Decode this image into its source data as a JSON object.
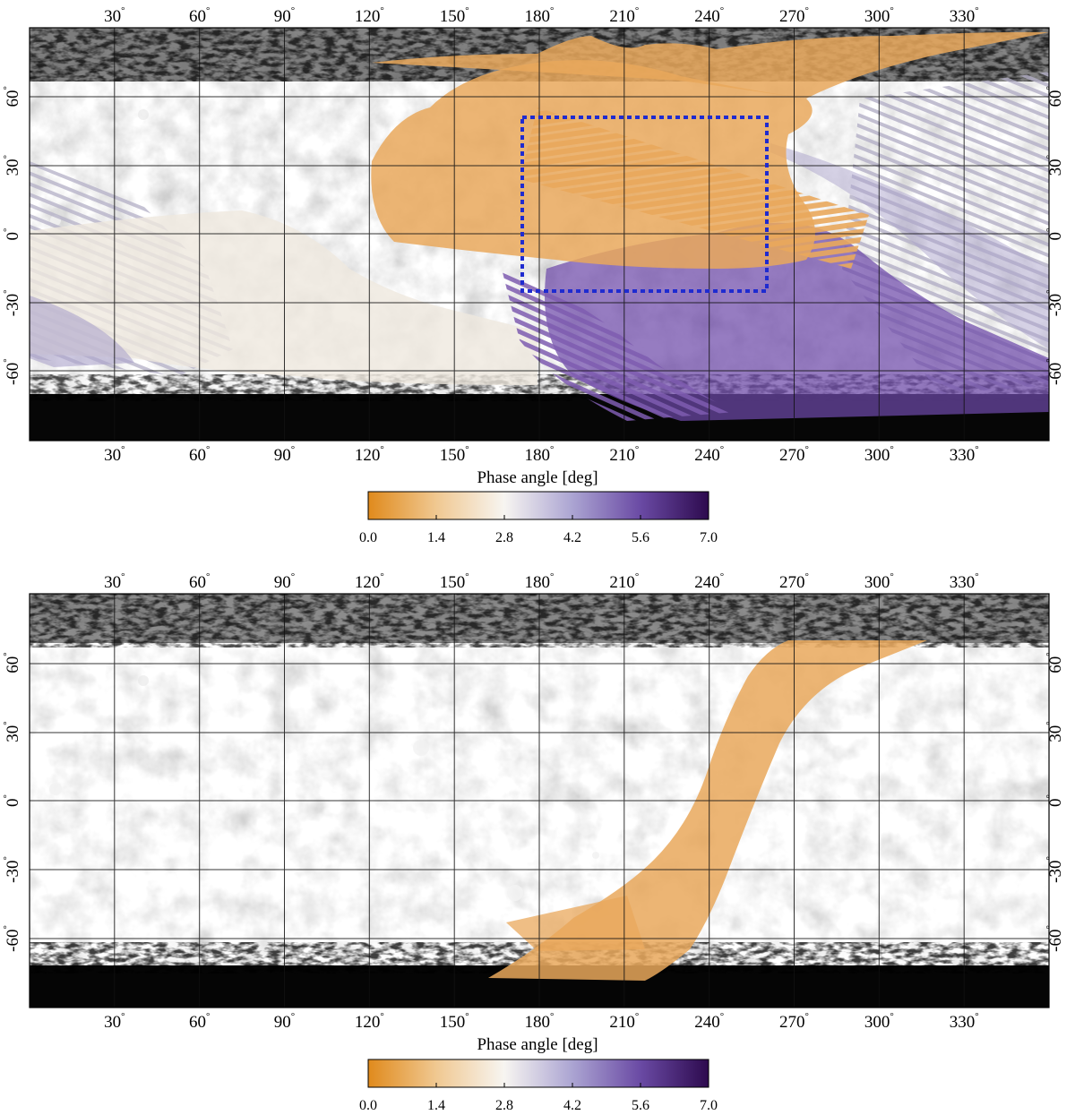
{
  "panels": [
    {
      "id": "top",
      "lon_ticks": [
        30,
        60,
        90,
        120,
        150,
        180,
        210,
        240,
        270,
        300,
        330
      ],
      "lat_ticks": [
        60,
        30,
        0,
        -30,
        -60
      ],
      "degree_symbol": "°",
      "colorbar": {
        "title": "Phase angle [deg]",
        "tick_labels": [
          "0.0",
          "1.4",
          "2.8",
          "4.2",
          "5.6",
          "7.0"
        ],
        "range": [
          0.0,
          7.0
        ],
        "colors": [
          "#e08a1c",
          "#f0c891",
          "#f7f5f1",
          "#aba4d2",
          "#6a4aa4",
          "#2d0a4e"
        ]
      },
      "overlays": [
        {
          "type": "coverage",
          "description_color": "#e9a85c"
        },
        {
          "type": "coverage",
          "description_color": "#efe6da"
        },
        {
          "type": "coverage",
          "description_color": "#7e5cb0"
        }
      ],
      "region_box": {
        "lon_range": [
          174,
          260
        ],
        "lat_range": [
          -25,
          52
        ],
        "color": "#1f2bd0",
        "style": "dotted"
      }
    },
    {
      "id": "bottom",
      "lon_ticks": [
        30,
        60,
        90,
        120,
        150,
        180,
        210,
        240,
        270,
        300,
        330
      ],
      "lat_ticks": [
        60,
        30,
        0,
        -30,
        -60
      ],
      "degree_symbol": "°",
      "colorbar": {
        "title": "Phase angle [deg]",
        "tick_labels": [
          "0.0",
          "1.4",
          "2.8",
          "4.2",
          "5.6",
          "7.0"
        ],
        "range": [
          0.0,
          7.0
        ],
        "colors": [
          "#e08a1c",
          "#f0c891",
          "#f7f5f1",
          "#aba4d2",
          "#6a4aa4",
          "#2d0a4e"
        ]
      },
      "overlays": [
        {
          "type": "coverage",
          "description_color": "#e9a85c"
        }
      ]
    }
  ]
}
